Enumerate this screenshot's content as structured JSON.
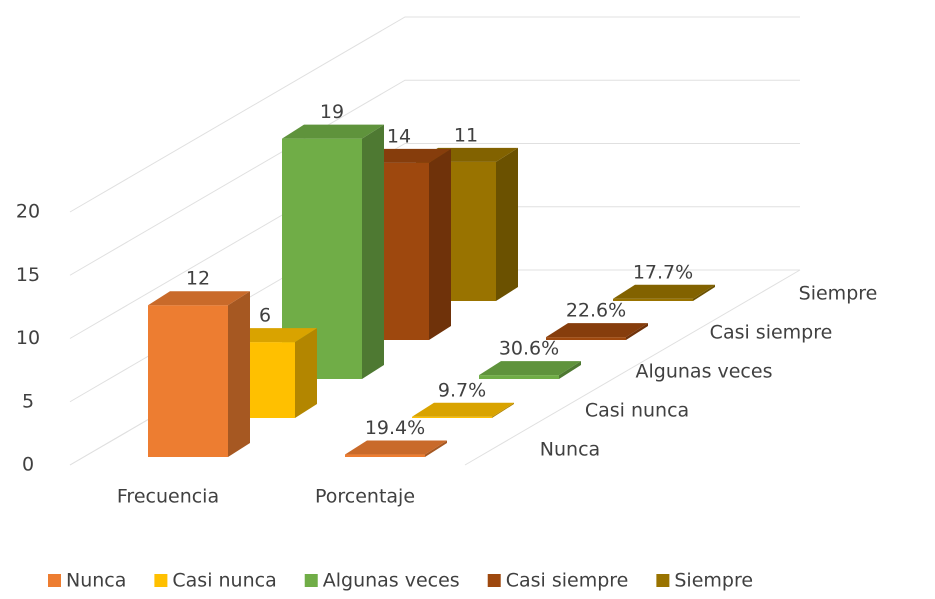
{
  "chart_data": {
    "type": "bar3d",
    "categories": [
      "Frecuencia",
      "Porcentaje"
    ],
    "series": [
      {
        "name": "Nunca",
        "color": "#ed7d31",
        "values": [
          12,
          0.194
        ],
        "value_labels": [
          "12",
          "19.4%"
        ]
      },
      {
        "name": "Casi nunca",
        "color": "#ffc000",
        "values": [
          6,
          0.097
        ],
        "value_labels": [
          "6",
          "9.7%"
        ]
      },
      {
        "name": "Algunas veces",
        "color": "#70ad47",
        "values": [
          19,
          0.306
        ],
        "value_labels": [
          "19",
          "30.6%"
        ]
      },
      {
        "name": "Casi siempre",
        "color": "#9e480e",
        "values": [
          14,
          0.226
        ],
        "value_labels": [
          "14",
          "22.6%"
        ]
      },
      {
        "name": "Siempre",
        "color": "#997300",
        "values": [
          11,
          0.177
        ],
        "value_labels": [
          "11",
          "17.7%"
        ]
      }
    ],
    "ylim": [
      0,
      20
    ],
    "yticks": [
      0,
      5,
      10,
      15,
      20
    ],
    "grid": true,
    "legend": "bottom"
  }
}
